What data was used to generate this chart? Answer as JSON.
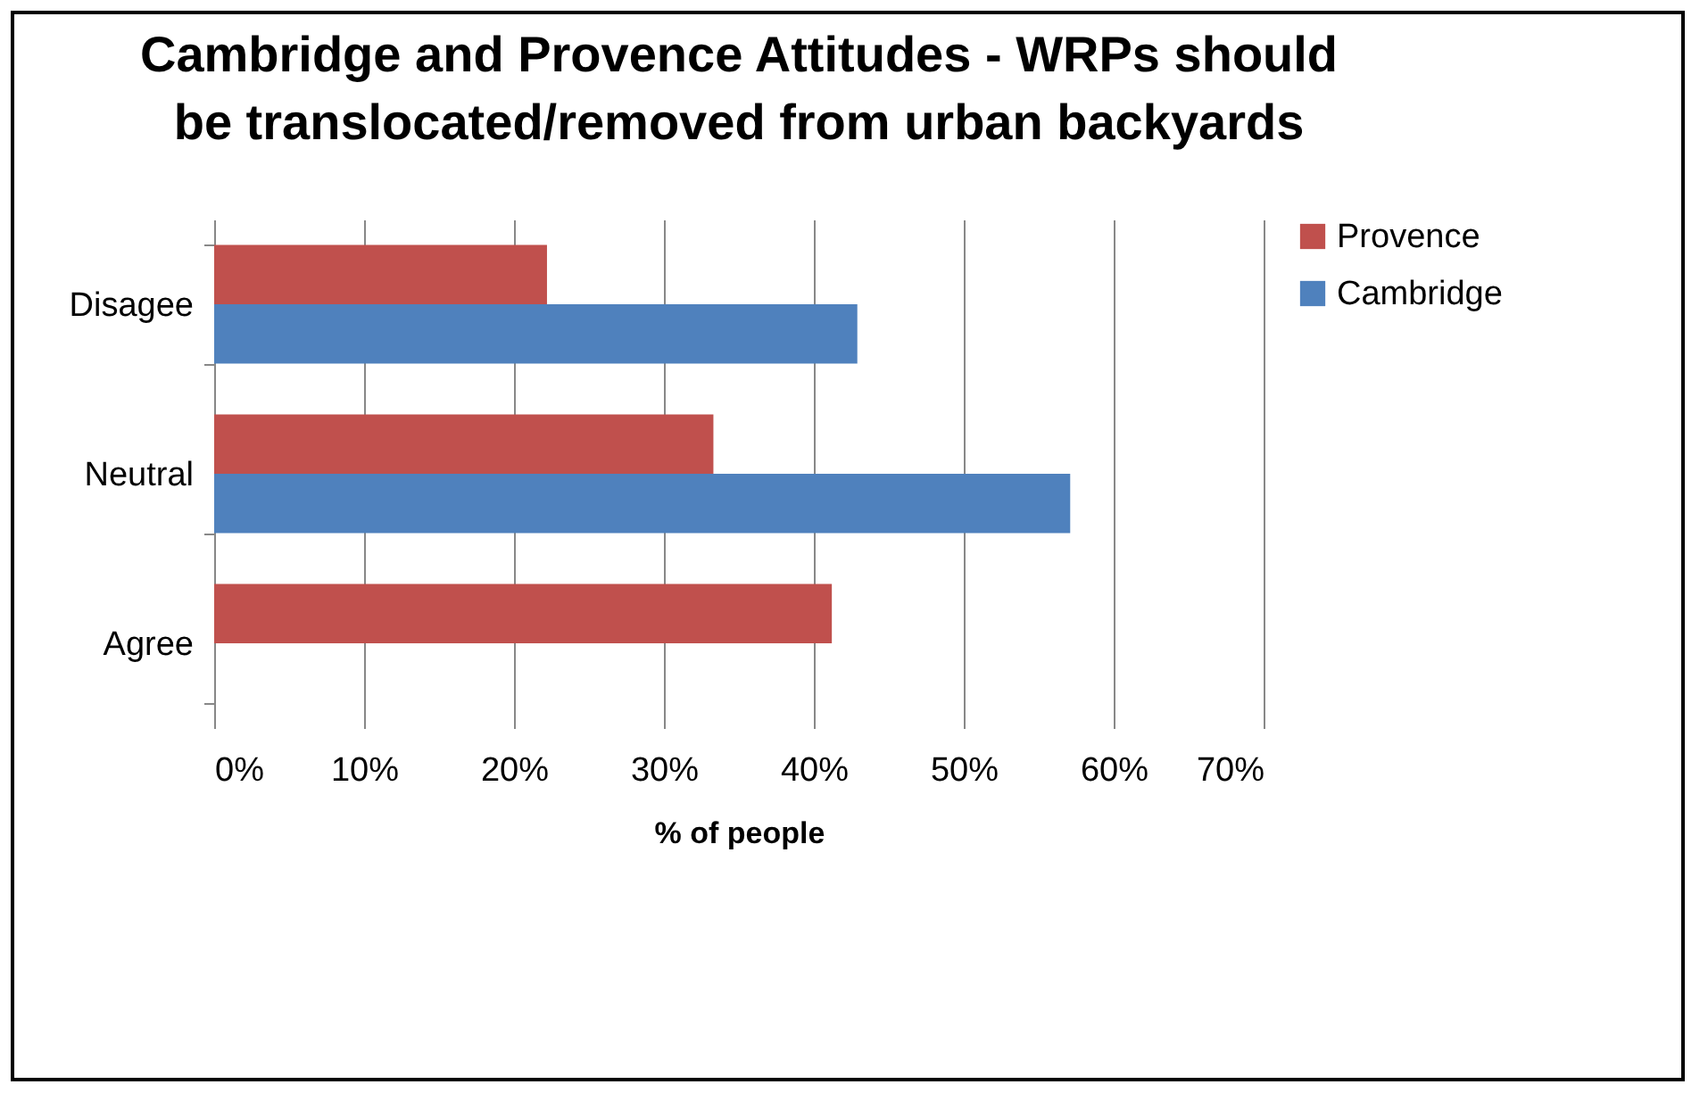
{
  "chart_data": {
    "type": "bar",
    "orientation": "horizontal",
    "title": "Cambridge and Provence Attitudes - WRPs should be translocated/removed from urban backyards",
    "xlabel": "% of people",
    "categories": [
      "Disagee",
      "Neutral",
      "Agree"
    ],
    "series": [
      {
        "name": "Provence",
        "color": "#c0504d",
        "values": [
          22.2,
          33.3,
          41.2
        ]
      },
      {
        "name": "Cambridge",
        "color": "#4f81bd",
        "values": [
          42.9,
          57.1,
          0
        ]
      }
    ],
    "xlim": [
      0,
      70
    ],
    "xticks": [
      {
        "value": 0,
        "label": "0%"
      },
      {
        "value": 10,
        "label": "10%"
      },
      {
        "value": 20,
        "label": "20%"
      },
      {
        "value": 30,
        "label": "30%"
      },
      {
        "value": 40,
        "label": "40%"
      },
      {
        "value": 50,
        "label": "50%"
      },
      {
        "value": 60,
        "label": "60%"
      },
      {
        "value": 70,
        "label": "70%"
      }
    ],
    "grid": "x",
    "legend": "right"
  }
}
